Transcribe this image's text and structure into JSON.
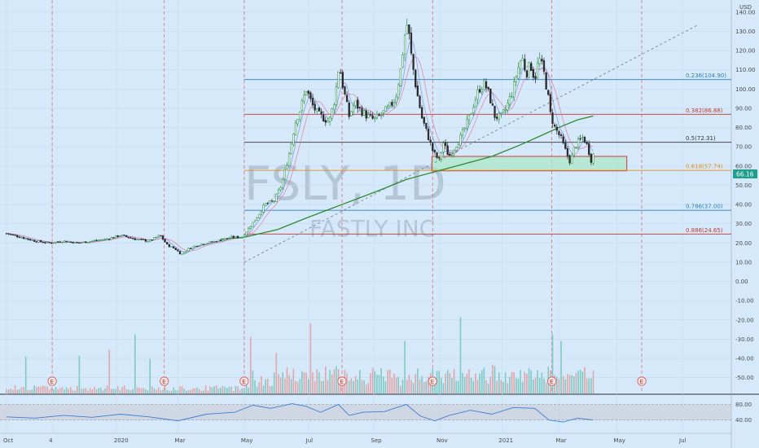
{
  "chart_data": {
    "type": "candlestick",
    "symbol": "FSLY",
    "interval": "1D",
    "company": "FASTLY INC",
    "currency": "USD",
    "last_price": "66.16",
    "y_axis": {
      "range": [
        -55,
        145
      ],
      "ticks": [
        "140.00",
        "130.00",
        "120.00",
        "110.00",
        "100.00",
        "90.00",
        "80.00",
        "70.00",
        "60.00",
        "50.00",
        "40.00",
        "30.00",
        "20.00",
        "10.00",
        "0.00",
        "-10.00",
        "-20.00",
        "-30.00",
        "-40.00",
        "-50.00"
      ],
      "tick_values": [
        140,
        130,
        120,
        110,
        100,
        90,
        80,
        70,
        60,
        50,
        40,
        30,
        20,
        10,
        0,
        -10,
        -20,
        -30,
        -40,
        -50
      ]
    },
    "x_axis": {
      "labels": [
        "Oct",
        "4",
        "2020",
        "Mar",
        "May",
        "Jul",
        "Sep",
        "Nov",
        "2021",
        "Mar",
        "May",
        "Jul"
      ],
      "label_days": [
        0,
        64,
        155,
        240,
        333,
        424,
        515,
        607,
        694,
        774,
        855,
        947
      ]
    },
    "price_series": [
      {
        "day": 0,
        "close": 25
      },
      {
        "day": 20,
        "close": 23
      },
      {
        "day": 40,
        "close": 21
      },
      {
        "day": 60,
        "close": 20
      },
      {
        "day": 80,
        "close": 21
      },
      {
        "day": 100,
        "close": 20
      },
      {
        "day": 120,
        "close": 21
      },
      {
        "day": 140,
        "close": 22
      },
      {
        "day": 160,
        "close": 24
      },
      {
        "day": 180,
        "close": 22
      },
      {
        "day": 200,
        "close": 21
      },
      {
        "day": 215,
        "close": 24
      },
      {
        "day": 225,
        "close": 19
      },
      {
        "day": 236,
        "close": 17
      },
      {
        "day": 245,
        "close": 14
      },
      {
        "day": 255,
        "close": 17
      },
      {
        "day": 268,
        "close": 19
      },
      {
        "day": 280,
        "close": 20
      },
      {
        "day": 295,
        "close": 21
      },
      {
        "day": 315,
        "close": 23
      },
      {
        "day": 330,
        "close": 23
      },
      {
        "day": 340,
        "close": 28
      },
      {
        "day": 350,
        "close": 33
      },
      {
        "day": 362,
        "close": 40
      },
      {
        "day": 375,
        "close": 42
      },
      {
        "day": 385,
        "close": 50
      },
      {
        "day": 392,
        "close": 60
      },
      {
        "day": 398,
        "close": 70
      },
      {
        "day": 404,
        "close": 82
      },
      {
        "day": 412,
        "close": 90
      },
      {
        "day": 420,
        "close": 100
      },
      {
        "day": 428,
        "close": 92
      },
      {
        "day": 436,
        "close": 87
      },
      {
        "day": 444,
        "close": 85
      },
      {
        "day": 452,
        "close": 83
      },
      {
        "day": 460,
        "close": 95
      },
      {
        "day": 466,
        "close": 113
      },
      {
        "day": 472,
        "close": 100
      },
      {
        "day": 480,
        "close": 86
      },
      {
        "day": 488,
        "close": 93
      },
      {
        "day": 496,
        "close": 89
      },
      {
        "day": 505,
        "close": 86
      },
      {
        "day": 515,
        "close": 84
      },
      {
        "day": 525,
        "close": 87
      },
      {
        "day": 535,
        "close": 90
      },
      {
        "day": 545,
        "close": 95
      },
      {
        "day": 552,
        "close": 110
      },
      {
        "day": 558,
        "close": 128
      },
      {
        "day": 562,
        "close": 135
      },
      {
        "day": 566,
        "close": 120
      },
      {
        "day": 574,
        "close": 100
      },
      {
        "day": 582,
        "close": 85
      },
      {
        "day": 590,
        "close": 76
      },
      {
        "day": 598,
        "close": 67
      },
      {
        "day": 606,
        "close": 63
      },
      {
        "day": 612,
        "close": 72
      },
      {
        "day": 620,
        "close": 65
      },
      {
        "day": 628,
        "close": 70
      },
      {
        "day": 638,
        "close": 76
      },
      {
        "day": 648,
        "close": 85
      },
      {
        "day": 655,
        "close": 93
      },
      {
        "day": 662,
        "close": 100
      },
      {
        "day": 670,
        "close": 103
      },
      {
        "day": 676,
        "close": 97
      },
      {
        "day": 684,
        "close": 86
      },
      {
        "day": 692,
        "close": 85
      },
      {
        "day": 700,
        "close": 90
      },
      {
        "day": 710,
        "close": 100
      },
      {
        "day": 716,
        "close": 110
      },
      {
        "day": 722,
        "close": 117
      },
      {
        "day": 728,
        "close": 108
      },
      {
        "day": 734,
        "close": 113
      },
      {
        "day": 740,
        "close": 105
      },
      {
        "day": 746,
        "close": 116
      },
      {
        "day": 752,
        "close": 110
      },
      {
        "day": 758,
        "close": 98
      },
      {
        "day": 762,
        "close": 87
      },
      {
        "day": 768,
        "close": 80
      },
      {
        "day": 776,
        "close": 75
      },
      {
        "day": 784,
        "close": 67
      },
      {
        "day": 790,
        "close": 62
      },
      {
        "day": 796,
        "close": 70
      },
      {
        "day": 802,
        "close": 73
      },
      {
        "day": 808,
        "close": 75
      },
      {
        "day": 814,
        "close": 70
      },
      {
        "day": 820,
        "close": 62
      },
      {
        "day": 822,
        "close": 66
      }
    ],
    "ma_200": [
      {
        "day": 300,
        "value": 22
      },
      {
        "day": 333,
        "value": 23
      },
      {
        "day": 380,
        "value": 27
      },
      {
        "day": 420,
        "value": 33
      },
      {
        "day": 470,
        "value": 40
      },
      {
        "day": 520,
        "value": 47
      },
      {
        "day": 560,
        "value": 53
      },
      {
        "day": 600,
        "value": 57
      },
      {
        "day": 640,
        "value": 61
      },
      {
        "day": 680,
        "value": 65
      },
      {
        "day": 720,
        "value": 71
      },
      {
        "day": 750,
        "value": 76
      },
      {
        "day": 780,
        "value": 81
      },
      {
        "day": 800,
        "value": 84
      },
      {
        "day": 822,
        "value": 86
      }
    ],
    "trendline": [
      {
        "day": 333,
        "value": 10
      },
      {
        "day": 967,
        "value": 133
      }
    ],
    "fib_levels": [
      {
        "label": "0.236(104.90)",
        "value": 104.9,
        "color": "#2a7fc1"
      },
      {
        "label": "0.382(86.88)",
        "value": 86.88,
        "color": "#c0392b"
      },
      {
        "label": "0.5(72.31)",
        "value": 72.31,
        "color": "#333333"
      },
      {
        "label": "0.618(57.74)",
        "value": 57.74,
        "color": "#e0901a"
      },
      {
        "label": "0.786(37.00)",
        "value": 37.0,
        "color": "#2a7fc1"
      },
      {
        "label": "0.886(24.65)",
        "value": 24.65,
        "color": "#c0392b"
      }
    ],
    "fib_start_day": 333,
    "support_zone": {
      "day_start": 596,
      "day_end": 912,
      "top": 65,
      "bottom": 57.5
    },
    "earnings_days": [
      64,
      221,
      333,
      470,
      597,
      764,
      890
    ],
    "event_lines_days": [
      64,
      221,
      333,
      470,
      597,
      764,
      890
    ],
    "rsi": {
      "ticks": [
        "80.00",
        "40.00"
      ],
      "tick_values": [
        80,
        40
      ],
      "values": [
        {
          "day": 0,
          "v": 48
        },
        {
          "day": 40,
          "v": 45
        },
        {
          "day": 80,
          "v": 52
        },
        {
          "day": 120,
          "v": 47
        },
        {
          "day": 160,
          "v": 55
        },
        {
          "day": 200,
          "v": 48
        },
        {
          "day": 240,
          "v": 38
        },
        {
          "day": 280,
          "v": 55
        },
        {
          "day": 320,
          "v": 60
        },
        {
          "day": 345,
          "v": 78
        },
        {
          "day": 370,
          "v": 70
        },
        {
          "day": 400,
          "v": 82
        },
        {
          "day": 420,
          "v": 75
        },
        {
          "day": 440,
          "v": 60
        },
        {
          "day": 465,
          "v": 80
        },
        {
          "day": 480,
          "v": 52
        },
        {
          "day": 500,
          "v": 60
        },
        {
          "day": 530,
          "v": 62
        },
        {
          "day": 560,
          "v": 80
        },
        {
          "day": 580,
          "v": 50
        },
        {
          "day": 600,
          "v": 38
        },
        {
          "day": 620,
          "v": 52
        },
        {
          "day": 650,
          "v": 65
        },
        {
          "day": 680,
          "v": 55
        },
        {
          "day": 710,
          "v": 72
        },
        {
          "day": 740,
          "v": 70
        },
        {
          "day": 760,
          "v": 40
        },
        {
          "day": 780,
          "v": 35
        },
        {
          "day": 800,
          "v": 45
        },
        {
          "day": 822,
          "v": 40
        }
      ]
    }
  }
}
